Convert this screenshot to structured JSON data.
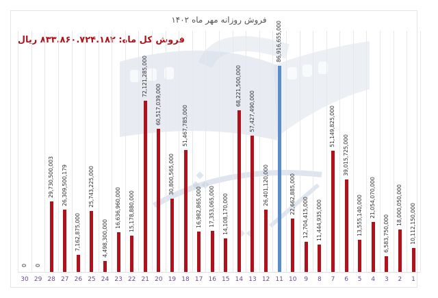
{
  "chart_data": {
    "type": "bar",
    "title": "فروش روزانه مهر ماه ۱۴۰۲",
    "annotation": "فروش کل ماه: ۸۳۳.۸۶۰.۷۲۴.۱۸۲ ریال",
    "xlabel": "",
    "ylabel": "",
    "grid": "vertical",
    "legend": "none",
    "x_order": "right-to-left",
    "highlight_category": "11",
    "colors": {
      "bar": "#b0121b",
      "highlight": "#5b8ccc",
      "axis_label": "#6a4a8a"
    },
    "categories": [
      "30",
      "29",
      "28",
      "27",
      "26",
      "25",
      "24",
      "23",
      "22",
      "21",
      "20",
      "19",
      "18",
      "17",
      "16",
      "15",
      "14",
      "13",
      "12",
      "11",
      "10",
      "9",
      "8",
      "7",
      "6",
      "5",
      "4",
      "3",
      "2",
      "1"
    ],
    "values": [
      0,
      0,
      29730500003,
      26309500179,
      7162875000,
      25743225000,
      4498300000,
      16636960000,
      15178880000,
      72121285000,
      60517039000,
      30800565000,
      51467785000,
      16982865000,
      17353065000,
      14108170000,
      68221500000,
      57427490000,
      26401120000,
      86916655000,
      22662885000,
      12704415000,
      11444935000,
      51149825000,
      39015725000,
      13555140000,
      21054070000,
      6583750000,
      18000050000,
      10112150000
    ],
    "labels": [
      "0",
      "0",
      "29,730,500,003",
      "26,309,500,179",
      "7,162,875,000",
      "25,743,225,000",
      "4,498,300,000",
      "16,636,960,000",
      "15,178,880,000",
      "72,121,285,000",
      "60,517,039,000",
      "30,800,565,000",
      "51,467,785,000",
      "16,982,865,000",
      "17,353,065,000",
      "14,108,170,000",
      "68,221,500,000",
      "57,427,490,000",
      "26,401,120,000",
      "86,916,655,000",
      "22,662,885,000",
      "12,704,415,000",
      "11,444,935,000",
      "51,149,825,000",
      "39,015,725,000",
      "13,555,140,000",
      "21,054,070,000",
      "6,583,750,000",
      "18,000,050,000",
      "10,112,150,000"
    ],
    "ylim": [
      0,
      87000000000
    ]
  }
}
